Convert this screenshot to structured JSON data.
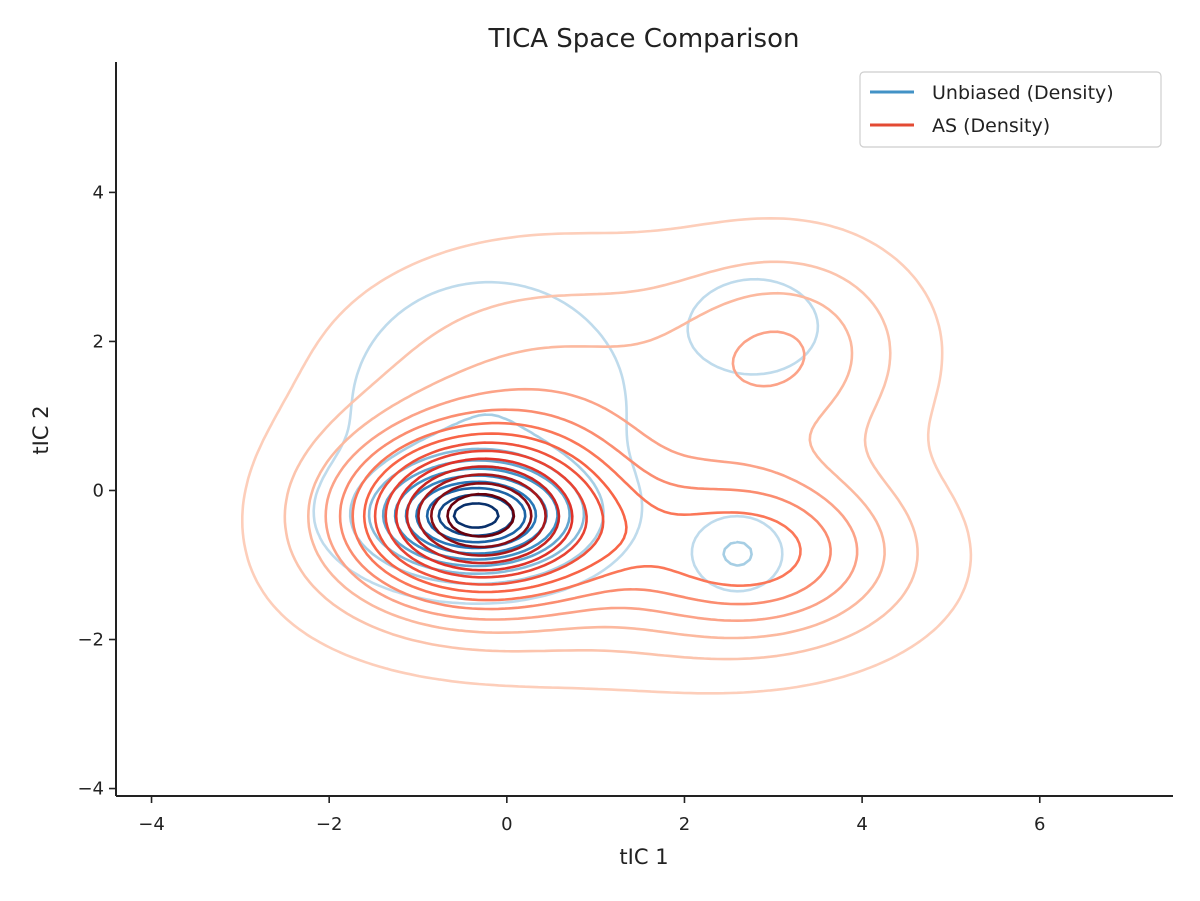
{
  "chart_data": {
    "type": "contour",
    "title": "TICA Space Comparison",
    "xlabel": "tIC 1",
    "ylabel": "tIC 2",
    "xlim": [
      -4.4,
      7.5
    ],
    "ylim": [
      -4.1,
      5.75
    ],
    "xticks": [
      -4,
      -2,
      0,
      2,
      4,
      6
    ],
    "yticks": [
      -4,
      -2,
      0,
      2,
      4
    ],
    "xtick_labels": [
      "−4",
      "−2",
      "0",
      "2",
      "4",
      "6"
    ],
    "ytick_labels": [
      "−4",
      "−2",
      "0",
      "2",
      "4"
    ],
    "grid": false,
    "legend_position": "top-right",
    "series": [
      {
        "name": "Unbiased (Density)",
        "color": "#4292c6",
        "colormap": "Blues",
        "levels": 10,
        "components": [
          {
            "weight": 0.62,
            "mean": [
              -0.35,
              -0.35
            ],
            "sd": [
              0.7,
              0.45
            ]
          },
          {
            "weight": 0.3,
            "mean": [
              -0.2,
              1.1
            ],
            "sd": [
              1.0,
              1.1
            ]
          },
          {
            "weight": 0.05,
            "mean": [
              2.8,
              2.2
            ],
            "sd": [
              0.5,
              0.45
            ]
          },
          {
            "weight": 0.03,
            "mean": [
              2.6,
              -0.85
            ],
            "sd": [
              0.3,
              0.3
            ]
          }
        ]
      },
      {
        "name": "AS (Density)",
        "color": "#e34a33",
        "colormap": "Reds",
        "levels": 14,
        "components": [
          {
            "weight": 0.4,
            "mean": [
              -0.35,
              -0.35
            ],
            "sd": [
              1.0,
              0.75
            ]
          },
          {
            "weight": 0.22,
            "mean": [
              0.6,
              1.3
            ],
            "sd": [
              1.6,
              1.2
            ]
          },
          {
            "weight": 0.2,
            "mean": [
              2.8,
              -0.8
            ],
            "sd": [
              1.1,
              0.8
            ]
          },
          {
            "weight": 0.1,
            "mean": [
              3.2,
              1.9
            ],
            "sd": [
              0.9,
              0.9
            ]
          },
          {
            "weight": 0.08,
            "mean": [
              0.8,
              -1.5
            ],
            "sd": [
              2.0,
              0.8
            ]
          }
        ]
      }
    ]
  }
}
